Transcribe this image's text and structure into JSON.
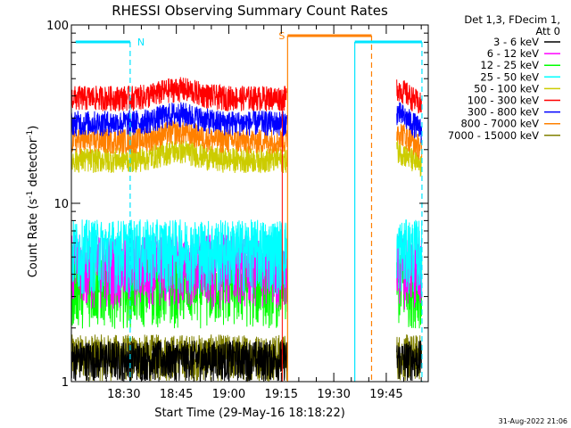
{
  "chart_data": {
    "type": "line",
    "title": "RHESSI Observing Summary Count Rates",
    "xlabel": "Start Time (29-May-16 18:18:22)",
    "ylabel": "Count Rate (s⁻¹ detector⁻¹)",
    "ylabel_main": "Count Rate (s",
    "ylabel_mid": " detector",
    "ylabel_end": ")",
    "ylabel_sup": "-1",
    "yscale": "log",
    "ylim": [
      1,
      100
    ],
    "xlim_min": [
      18.25,
      19.95
    ],
    "xticks": [
      "18:30",
      "18:45",
      "19:00",
      "19:15",
      "19:30",
      "19:45"
    ],
    "xtick_values_min": [
      18.5,
      18.75,
      19.0,
      19.25,
      19.5,
      19.75
    ],
    "yticks": [
      "1",
      "10",
      "100"
    ],
    "legend_header": [
      "Det 1,3, FDecim 1,",
      "Att 0"
    ],
    "legend_placement": "outside-right",
    "series": [
      {
        "name": "3 - 6 keV",
        "color": "#000000",
        "level": 1.2
      },
      {
        "name": "6 - 12 keV",
        "color": "#ff00ff",
        "level": 4.6
      },
      {
        "name": "12 - 25 keV",
        "color": "#00ff00",
        "level": 3.6
      },
      {
        "name": "25 - 50 keV",
        "color": "#00ffff",
        "level": 5.6
      },
      {
        "name": "50 - 100 keV",
        "color": "#cccc00",
        "level": 18
      },
      {
        "name": "100 - 300 keV",
        "color": "#ff0000",
        "level": 40
      },
      {
        "name": "300 - 800 keV",
        "color": "#0000ff",
        "level": 29
      },
      {
        "name": "800 - 7000 keV",
        "color": "#ff8000",
        "level": 23
      },
      {
        "name": "7000 - 15000 keV",
        "color": "#808000",
        "level": 1.3
      }
    ],
    "data_gap_min": [
      19.28,
      19.8
    ],
    "annotations": [
      {
        "label": "N",
        "color": "#00e5ff",
        "bar_min": [
          18.27,
          18.53
        ],
        "dashed_at_min": [
          18.53
        ]
      },
      {
        "label": "S",
        "color": "#ff8000",
        "bar_min": [
          19.28,
          19.68
        ],
        "line_at_min": [
          19.28
        ],
        "dashed_at_min": [
          19.68
        ]
      },
      {
        "label": "",
        "color": "#00e5ff",
        "bar_min": [
          19.6,
          19.92
        ],
        "line_at_min": [
          19.6
        ],
        "dashed_at_min": [
          19.92
        ]
      }
    ]
  },
  "footer": {
    "timestamp": "31-Aug-2022 21:06"
  }
}
